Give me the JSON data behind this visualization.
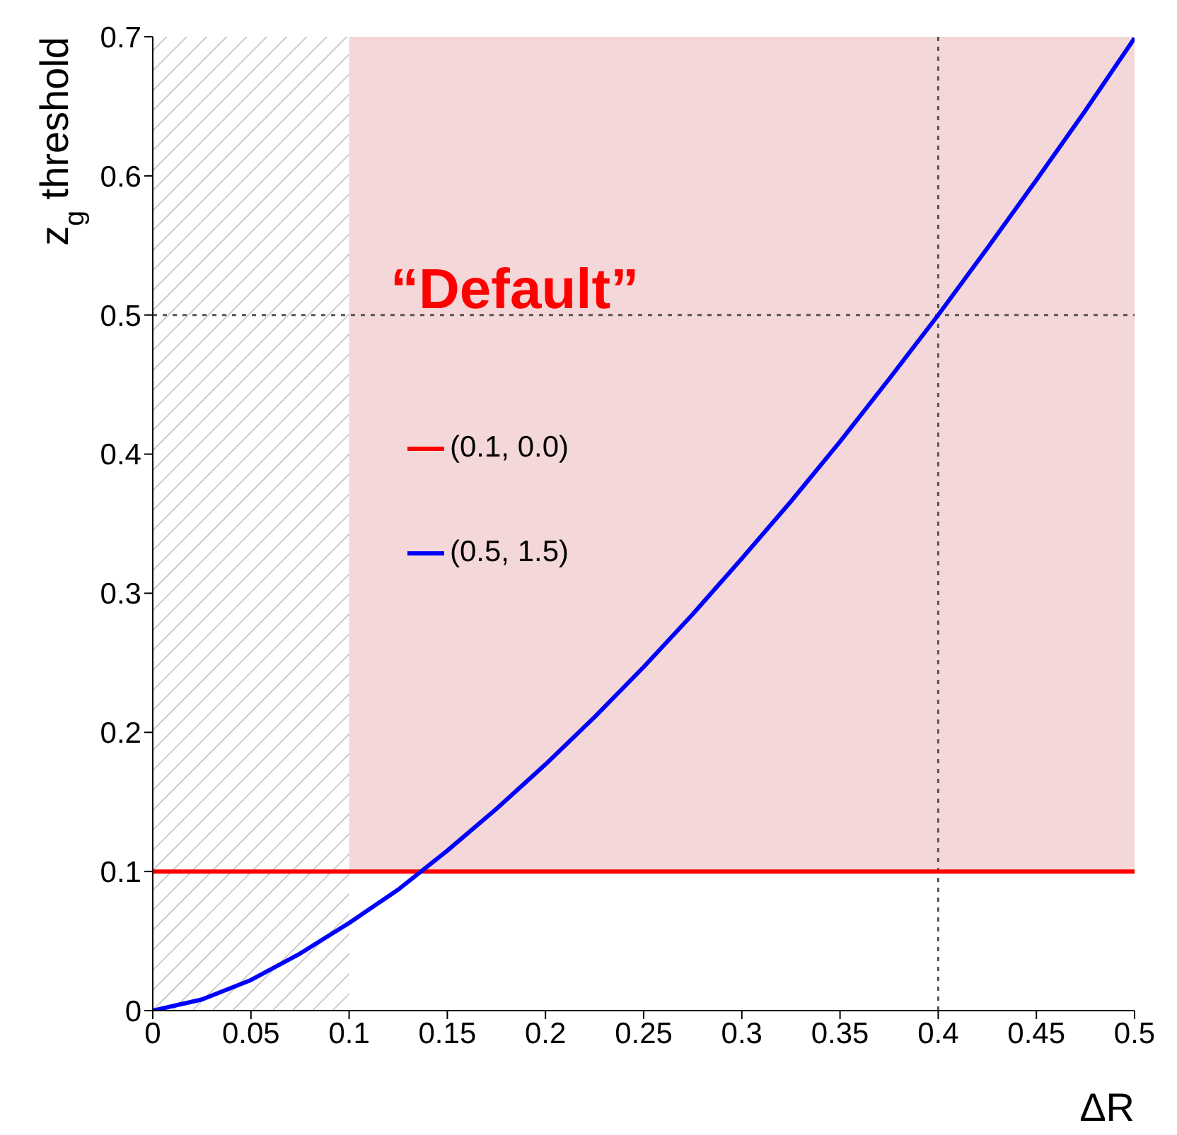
{
  "chart_data": {
    "type": "line",
    "xlabel": "ΔR",
    "ylabel": "z$_{g}$ threshold",
    "xlim": [
      0,
      0.5
    ],
    "ylim": [
      0,
      0.7
    ],
    "xticks": [
      0,
      0.05,
      0.1,
      0.15,
      0.2,
      0.25,
      0.3,
      0.35,
      0.4,
      0.45,
      0.5
    ],
    "yticks": [
      0,
      0.1,
      0.2,
      0.3,
      0.4,
      0.5,
      0.6,
      0.7
    ],
    "series": [
      {
        "name": "(0.1, 0.0)",
        "color": "#ff0000",
        "x": [
          0,
          0.5
        ],
        "values": [
          0.1,
          0.1
        ]
      },
      {
        "name": "(0.5, 1.5)",
        "color": "#0000ff",
        "x": [
          0,
          0.025,
          0.05,
          0.075,
          0.1,
          0.125,
          0.15,
          0.175,
          0.2,
          0.225,
          0.25,
          0.275,
          0.3,
          0.325,
          0.35,
          0.375,
          0.4,
          0.425,
          0.45,
          0.475,
          0.5
        ],
        "values": [
          0,
          0.008,
          0.022,
          0.041,
          0.063,
          0.087,
          0.115,
          0.145,
          0.177,
          0.211,
          0.247,
          0.285,
          0.325,
          0.366,
          0.409,
          0.454,
          0.5,
          0.548,
          0.597,
          0.647,
          0.699
        ]
      }
    ],
    "bands": [
      {
        "axis": "y",
        "from": 0.1,
        "to": 0.7,
        "color": "#f4d7d8"
      },
      {
        "axis": "x",
        "from": 0,
        "to": 0.1,
        "color": "#bbbbbb"
      }
    ],
    "ref_lines": [
      {
        "axis": "x",
        "value": 0.4,
        "color": "#555555",
        "line_style": "dotted"
      },
      {
        "axis": "y",
        "value": 0.5,
        "color": "#555555",
        "line_style": "dotted"
      }
    ],
    "annotations": [
      "“Default”"
    ],
    "legend": "left",
    "marker": "none",
    "line_style": "solid"
  }
}
